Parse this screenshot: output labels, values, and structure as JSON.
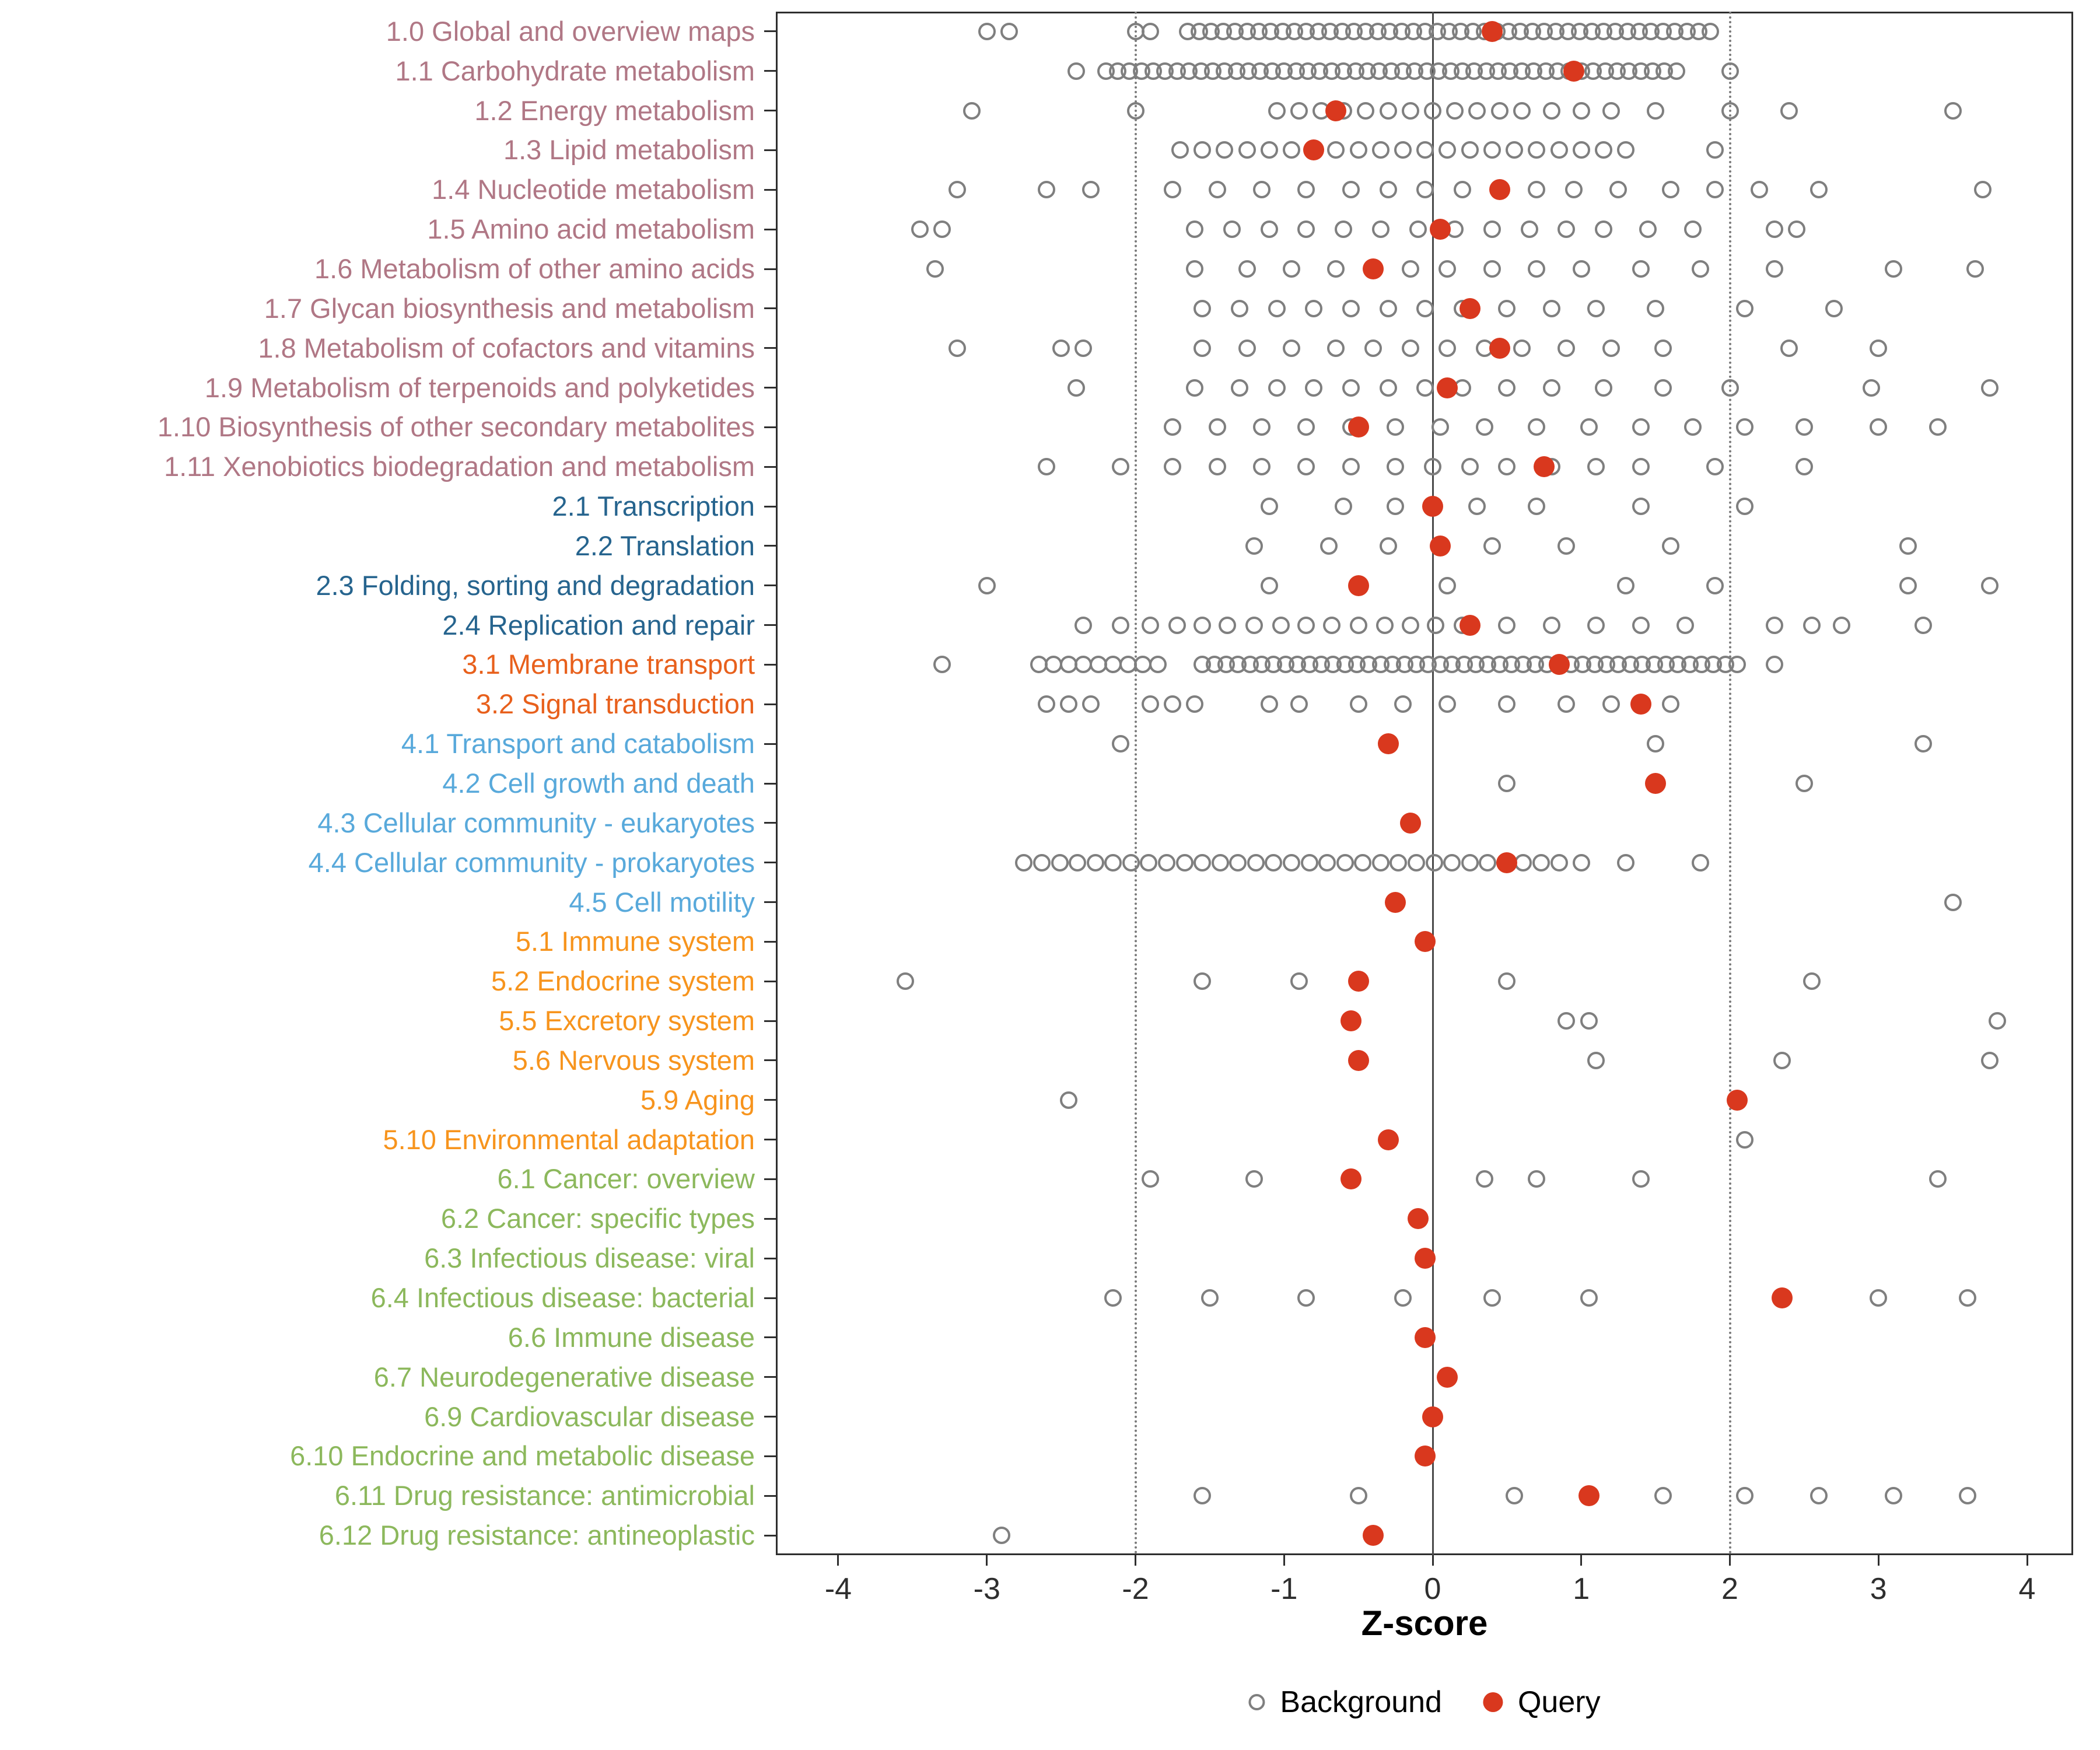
{
  "chart_data": {
    "type": "scatter",
    "title": "",
    "xlabel": "Z-score",
    "x_ticks": {
      "values": [
        -4,
        -3,
        -2,
        -1,
        0,
        1,
        2,
        3,
        4
      ],
      "labels": [
        "-4",
        "-3",
        "-2",
        "-1",
        "0",
        "1",
        "2",
        "3",
        "4"
      ]
    },
    "x_range": [
      -4.42,
      4.31
    ],
    "grid": "off",
    "legend_position": "bottom-center",
    "reference_lines": {
      "solid": [
        0
      ],
      "dotted": [
        -2,
        2
      ]
    },
    "legend": [
      {
        "label": "Background",
        "marker": "open-circle",
        "color": "#7F7F7F"
      },
      {
        "label": "Query",
        "marker": "filled-circle",
        "color": "#D9381E"
      }
    ],
    "point_colors": {
      "background_stroke": "#7F7F7F",
      "query_fill": "#D9381E"
    },
    "group_colors": {
      "g1": "#B07785",
      "g2": "#26648E",
      "g3": "#E8601C",
      "g4": "#58A9DB",
      "g5": "#F7941D",
      "g6": "#8CB85C"
    },
    "rows": [
      {
        "label": "1.0 Global and overview maps",
        "group": "g1",
        "query": 0.4,
        "background": [
          -3.0,
          -2.85,
          -2.0,
          -1.9,
          -1.65,
          -1.57,
          -1.49,
          -1.41,
          -1.33,
          -1.25,
          -1.17,
          -1.09,
          -1.01,
          -0.93,
          -0.85,
          -0.77,
          -0.69,
          -0.61,
          -0.53,
          -0.45,
          -0.37,
          -0.29,
          -0.21,
          -0.13,
          -0.05,
          0.03,
          0.11,
          0.19,
          0.27,
          0.35,
          0.43,
          0.51,
          0.59,
          0.67,
          0.75,
          0.83,
          0.91,
          0.99,
          1.07,
          1.15,
          1.23,
          1.31,
          1.39,
          1.47,
          1.55,
          1.63,
          1.71,
          1.79,
          1.87
        ]
      },
      {
        "label": "1.1 Carbohydrate metabolism",
        "group": "g1",
        "query": 0.95,
        "background": [
          -2.4,
          -2.2,
          -2.12,
          -2.04,
          -1.96,
          -1.88,
          -1.8,
          -1.72,
          -1.64,
          -1.56,
          -1.48,
          -1.4,
          -1.32,
          -1.24,
          -1.16,
          -1.08,
          -1.0,
          -0.92,
          -0.84,
          -0.76,
          -0.68,
          -0.6,
          -0.52,
          -0.44,
          -0.36,
          -0.28,
          -0.2,
          -0.12,
          -0.04,
          0.04,
          0.12,
          0.2,
          0.28,
          0.36,
          0.44,
          0.52,
          0.6,
          0.68,
          0.76,
          0.84,
          0.92,
          1.0,
          1.08,
          1.16,
          1.24,
          1.32,
          1.4,
          1.48,
          1.56,
          1.64,
          2.0
        ]
      },
      {
        "label": "1.2 Energy metabolism",
        "group": "g1",
        "query": -0.65,
        "background": [
          -3.1,
          -2.0,
          -1.05,
          -0.9,
          -0.75,
          -0.6,
          -0.45,
          -0.3,
          -0.15,
          0.0,
          0.15,
          0.3,
          0.45,
          0.6,
          0.8,
          1.0,
          1.2,
          1.5,
          2.0,
          2.4,
          3.5
        ]
      },
      {
        "label": "1.3 Lipid metabolism",
        "group": "g1",
        "query": -0.8,
        "background": [
          -1.7,
          -1.55,
          -1.4,
          -1.25,
          -1.1,
          -0.95,
          -0.8,
          -0.65,
          -0.5,
          -0.35,
          -0.2,
          -0.05,
          0.1,
          0.25,
          0.4,
          0.55,
          0.7,
          0.85,
          1.0,
          1.15,
          1.3,
          1.9
        ]
      },
      {
        "label": "1.4 Nucleotide metabolism",
        "group": "g1",
        "query": 0.45,
        "background": [
          -3.2,
          -2.6,
          -2.3,
          -1.75,
          -1.45,
          -1.15,
          -0.85,
          -0.55,
          -0.3,
          -0.05,
          0.2,
          0.45,
          0.7,
          0.95,
          1.25,
          1.6,
          1.9,
          2.2,
          2.6,
          3.7
        ]
      },
      {
        "label": "1.5 Amino acid metabolism",
        "group": "g1",
        "query": 0.05,
        "background": [
          -3.45,
          -3.3,
          -1.6,
          -1.35,
          -1.1,
          -0.85,
          -0.6,
          -0.35,
          -0.1,
          0.15,
          0.4,
          0.65,
          0.9,
          1.15,
          1.45,
          1.75,
          2.3,
          2.45
        ]
      },
      {
        "label": "1.6 Metabolism of other amino acids",
        "group": "g1",
        "query": -0.4,
        "background": [
          -3.35,
          -1.6,
          -1.25,
          -0.95,
          -0.65,
          -0.4,
          -0.15,
          0.1,
          0.4,
          0.7,
          1.0,
          1.4,
          1.8,
          2.3,
          3.1,
          3.65
        ]
      },
      {
        "label": "1.7 Glycan biosynthesis and metabolism",
        "group": "g1",
        "query": 0.25,
        "background": [
          -1.55,
          -1.3,
          -1.05,
          -0.8,
          -0.55,
          -0.3,
          -0.05,
          0.2,
          0.5,
          0.8,
          1.1,
          1.5,
          2.1,
          2.7
        ]
      },
      {
        "label": "1.8 Metabolism of cofactors and vitamins",
        "group": "g1",
        "query": 0.45,
        "background": [
          -3.2,
          -2.5,
          -2.35,
          -1.55,
          -1.25,
          -0.95,
          -0.65,
          -0.4,
          -0.15,
          0.1,
          0.35,
          0.6,
          0.9,
          1.2,
          1.55,
          2.4,
          3.0
        ]
      },
      {
        "label": "1.9 Metabolism of terpenoids and polyketides",
        "group": "g1",
        "query": 0.1,
        "background": [
          -2.4,
          -1.6,
          -1.3,
          -1.05,
          -0.8,
          -0.55,
          -0.3,
          -0.05,
          0.2,
          0.5,
          0.8,
          1.15,
          1.55,
          2.0,
          2.95,
          3.75
        ]
      },
      {
        "label": "1.10 Biosynthesis of other secondary metabolites",
        "group": "g1",
        "query": -0.5,
        "background": [
          -1.75,
          -1.45,
          -1.15,
          -0.85,
          -0.55,
          -0.25,
          0.05,
          0.35,
          0.7,
          1.05,
          1.4,
          1.75,
          2.1,
          2.5,
          3.0,
          3.4
        ]
      },
      {
        "label": "1.11 Xenobiotics biodegradation and metabolism",
        "group": "g1",
        "query": 0.75,
        "background": [
          -2.6,
          -2.1,
          -1.75,
          -1.45,
          -1.15,
          -0.85,
          -0.55,
          -0.25,
          0.0,
          0.25,
          0.5,
          0.8,
          1.1,
          1.4,
          1.9,
          2.5
        ]
      },
      {
        "label": "2.1 Transcription",
        "group": "g2",
        "query": 0.0,
        "background": [
          -1.1,
          -0.6,
          -0.25,
          0.3,
          0.7,
          1.4,
          2.1
        ]
      },
      {
        "label": "2.2 Translation",
        "group": "g2",
        "query": 0.05,
        "background": [
          -1.2,
          -0.7,
          -0.3,
          0.4,
          0.9,
          1.6,
          3.2
        ]
      },
      {
        "label": "2.3 Folding, sorting and degradation",
        "group": "g2",
        "query": -0.5,
        "background": [
          -3.0,
          -1.1,
          0.1,
          1.3,
          1.9,
          3.2,
          3.75
        ]
      },
      {
        "label": "2.4 Replication and repair",
        "group": "g2",
        "query": 0.25,
        "background": [
          -2.35,
          -2.1,
          -1.9,
          -1.72,
          -1.55,
          -1.38,
          -1.2,
          -1.02,
          -0.85,
          -0.68,
          -0.5,
          -0.32,
          -0.15,
          0.02,
          0.2,
          0.5,
          0.8,
          1.1,
          1.4,
          1.7,
          2.3,
          2.55,
          2.75,
          3.3
        ]
      },
      {
        "label": "3.1 Membrane transport",
        "group": "g3",
        "query": 0.85,
        "background": [
          -3.3,
          -2.65,
          -2.55,
          -2.45,
          -2.35,
          -2.25,
          -2.15,
          -2.05,
          -1.95,
          -1.85,
          -1.55,
          -1.47,
          -1.39,
          -1.31,
          -1.23,
          -1.15,
          -1.07,
          -0.99,
          -0.91,
          -0.83,
          -0.75,
          -0.67,
          -0.59,
          -0.51,
          -0.43,
          -0.35,
          -0.27,
          -0.19,
          -0.11,
          -0.03,
          0.05,
          0.13,
          0.21,
          0.29,
          0.37,
          0.45,
          0.53,
          0.61,
          0.69,
          0.77,
          0.85,
          0.93,
          1.01,
          1.09,
          1.17,
          1.25,
          1.33,
          1.41,
          1.49,
          1.57,
          1.65,
          1.73,
          1.81,
          1.89,
          1.97,
          2.05,
          2.3
        ]
      },
      {
        "label": "3.2 Signal transduction",
        "group": "g3",
        "query": 1.4,
        "background": [
          -2.6,
          -2.45,
          -2.3,
          -1.9,
          -1.75,
          -1.6,
          -1.1,
          -0.9,
          -0.5,
          -0.2,
          0.1,
          0.5,
          0.9,
          1.2,
          1.6
        ]
      },
      {
        "label": "4.1 Transport and catabolism",
        "group": "g4",
        "query": -0.3,
        "background": [
          -2.1,
          1.5,
          3.3
        ]
      },
      {
        "label": "4.2 Cell growth and death",
        "group": "g4",
        "query": 1.5,
        "background": [
          0.5,
          2.5
        ]
      },
      {
        "label": "4.3 Cellular community - eukaryotes",
        "group": "g4",
        "query": -0.15,
        "background": []
      },
      {
        "label": "4.4 Cellular community - prokaryotes",
        "group": "g4",
        "query": 0.5,
        "background": [
          -2.75,
          -2.63,
          -2.51,
          -2.39,
          -2.27,
          -2.15,
          -2.03,
          -1.91,
          -1.79,
          -1.67,
          -1.55,
          -1.43,
          -1.31,
          -1.19,
          -1.07,
          -0.95,
          -0.83,
          -0.71,
          -0.59,
          -0.47,
          -0.35,
          -0.23,
          -0.11,
          0.01,
          0.13,
          0.25,
          0.37,
          0.49,
          0.61,
          0.73,
          0.85,
          1.0,
          1.3,
          1.8
        ]
      },
      {
        "label": "4.5 Cell motility",
        "group": "g4",
        "query": -0.25,
        "background": [
          3.5
        ]
      },
      {
        "label": "5.1 Immune system",
        "group": "g5",
        "query": -0.05,
        "background": []
      },
      {
        "label": "5.2 Endocrine system",
        "group": "g5",
        "query": -0.5,
        "background": [
          -3.55,
          -1.55,
          -0.9,
          0.5,
          2.55
        ]
      },
      {
        "label": "5.5 Excretory system",
        "group": "g5",
        "query": -0.55,
        "background": [
          0.9,
          1.05,
          3.8
        ]
      },
      {
        "label": "5.6 Nervous system",
        "group": "g5",
        "query": -0.5,
        "background": [
          1.1,
          2.35,
          3.75
        ]
      },
      {
        "label": "5.9 Aging",
        "group": "g5",
        "query": 2.05,
        "background": [
          -2.45
        ]
      },
      {
        "label": "5.10 Environmental adaptation",
        "group": "g5",
        "query": -0.3,
        "background": [
          2.1
        ]
      },
      {
        "label": "6.1 Cancer: overview",
        "group": "g6",
        "query": -0.55,
        "background": [
          -1.9,
          -1.2,
          0.35,
          0.7,
          1.4,
          3.4
        ]
      },
      {
        "label": "6.2 Cancer: specific types",
        "group": "g6",
        "query": -0.1,
        "background": []
      },
      {
        "label": "6.3 Infectious disease: viral",
        "group": "g6",
        "query": -0.05,
        "background": []
      },
      {
        "label": "6.4 Infectious disease: bacterial",
        "group": "g6",
        "query": 2.35,
        "background": [
          -2.15,
          -1.5,
          -0.85,
          -0.2,
          0.4,
          1.05,
          3.0,
          3.6
        ]
      },
      {
        "label": "6.6 Immune disease",
        "group": "g6",
        "query": -0.05,
        "background": []
      },
      {
        "label": "6.7 Neurodegenerative disease",
        "group": "g6",
        "query": 0.1,
        "background": []
      },
      {
        "label": "6.9 Cardiovascular disease",
        "group": "g6",
        "query": 0.0,
        "background": []
      },
      {
        "label": "6.10 Endocrine and metabolic disease",
        "group": "g6",
        "query": -0.05,
        "background": []
      },
      {
        "label": "6.11 Drug resistance: antimicrobial",
        "group": "g6",
        "query": 1.05,
        "background": [
          -1.55,
          -0.5,
          0.55,
          1.55,
          2.1,
          2.6,
          3.1,
          3.6
        ]
      },
      {
        "label": "6.12 Drug resistance: antineoplastic",
        "group": "g6",
        "query": -0.4,
        "background": [
          -2.9
        ]
      }
    ]
  }
}
